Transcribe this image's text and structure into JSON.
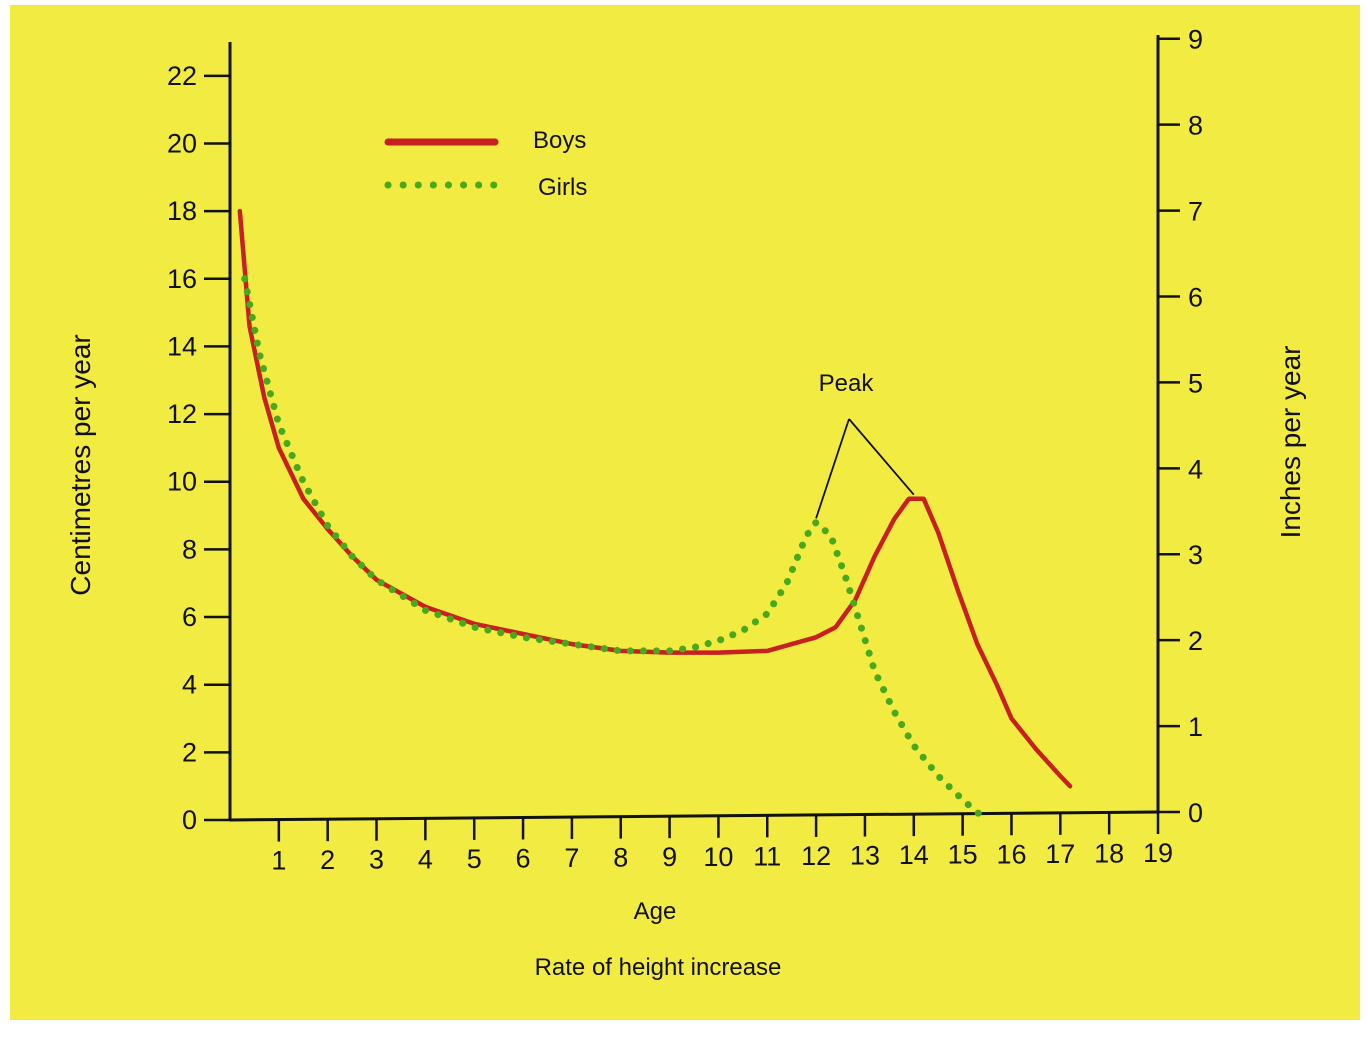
{
  "chart_data": {
    "type": "line",
    "caption": "Rate of height increase",
    "xlabel": "Age",
    "ylabel": "Centimetres per year",
    "y2label": "Inches per year",
    "xlim": [
      0,
      19
    ],
    "ylim": [
      0,
      23
    ],
    "y2lim": [
      0,
      9
    ],
    "x_ticks": [
      1,
      2,
      3,
      4,
      5,
      6,
      7,
      8,
      9,
      10,
      11,
      12,
      13,
      14,
      15,
      16,
      17,
      18,
      19
    ],
    "y_ticks": [
      0,
      2,
      4,
      6,
      8,
      10,
      12,
      14,
      16,
      18,
      20,
      22
    ],
    "y2_ticks": [
      0,
      1,
      2,
      3,
      4,
      5,
      6,
      7,
      8,
      9
    ],
    "grid": false,
    "legend_position": "top-left",
    "annotation": {
      "text": "Peak",
      "points": [
        [
          12,
          8.8
        ],
        [
          14,
          9.5
        ]
      ]
    },
    "series": [
      {
        "name": "Boys",
        "style": "solid",
        "color": "#c8201e",
        "points": [
          [
            0.2,
            18.0
          ],
          [
            0.4,
            14.6
          ],
          [
            0.7,
            12.5
          ],
          [
            1,
            11.0
          ],
          [
            1.5,
            9.5
          ],
          [
            2,
            8.6
          ],
          [
            2.5,
            7.8
          ],
          [
            3,
            7.1
          ],
          [
            3.5,
            6.7
          ],
          [
            4,
            6.3
          ],
          [
            5,
            5.8
          ],
          [
            6,
            5.5
          ],
          [
            7,
            5.2
          ],
          [
            8,
            5.0
          ],
          [
            9,
            4.95
          ],
          [
            10,
            4.95
          ],
          [
            11,
            5.0
          ],
          [
            11.5,
            5.2
          ],
          [
            12,
            5.4
          ],
          [
            12.4,
            5.7
          ],
          [
            12.8,
            6.5
          ],
          [
            13.2,
            7.8
          ],
          [
            13.6,
            8.9
          ],
          [
            13.9,
            9.5
          ],
          [
            14.2,
            9.5
          ],
          [
            14.5,
            8.5
          ],
          [
            14.9,
            6.8
          ],
          [
            15.3,
            5.2
          ],
          [
            15.7,
            4.0
          ],
          [
            16,
            3.0
          ],
          [
            16.5,
            2.1
          ],
          [
            17,
            1.3
          ],
          [
            17.2,
            1.0
          ]
        ]
      },
      {
        "name": "Girls",
        "style": "dotted",
        "color": "#4aa81c",
        "points": [
          [
            0.3,
            16.0
          ],
          [
            0.6,
            13.8
          ],
          [
            1,
            11.7
          ],
          [
            1.5,
            10.0
          ],
          [
            2,
            8.7
          ],
          [
            2.5,
            7.8
          ],
          [
            3,
            7.1
          ],
          [
            4,
            6.2
          ],
          [
            5,
            5.7
          ],
          [
            6,
            5.4
          ],
          [
            7,
            5.2
          ],
          [
            8,
            5.0
          ],
          [
            9,
            5.0
          ],
          [
            9.5,
            5.1
          ],
          [
            10,
            5.3
          ],
          [
            10.5,
            5.6
          ],
          [
            11,
            6.1
          ],
          [
            11.4,
            7.0
          ],
          [
            11.8,
            8.4
          ],
          [
            12,
            8.8
          ],
          [
            12.3,
            8.4
          ],
          [
            12.6,
            7.2
          ],
          [
            12.9,
            5.8
          ],
          [
            13.2,
            4.4
          ],
          [
            13.6,
            3.2
          ],
          [
            14,
            2.2
          ],
          [
            14.5,
            1.3
          ],
          [
            15,
            0.6
          ],
          [
            15.4,
            0.1
          ]
        ]
      }
    ]
  }
}
